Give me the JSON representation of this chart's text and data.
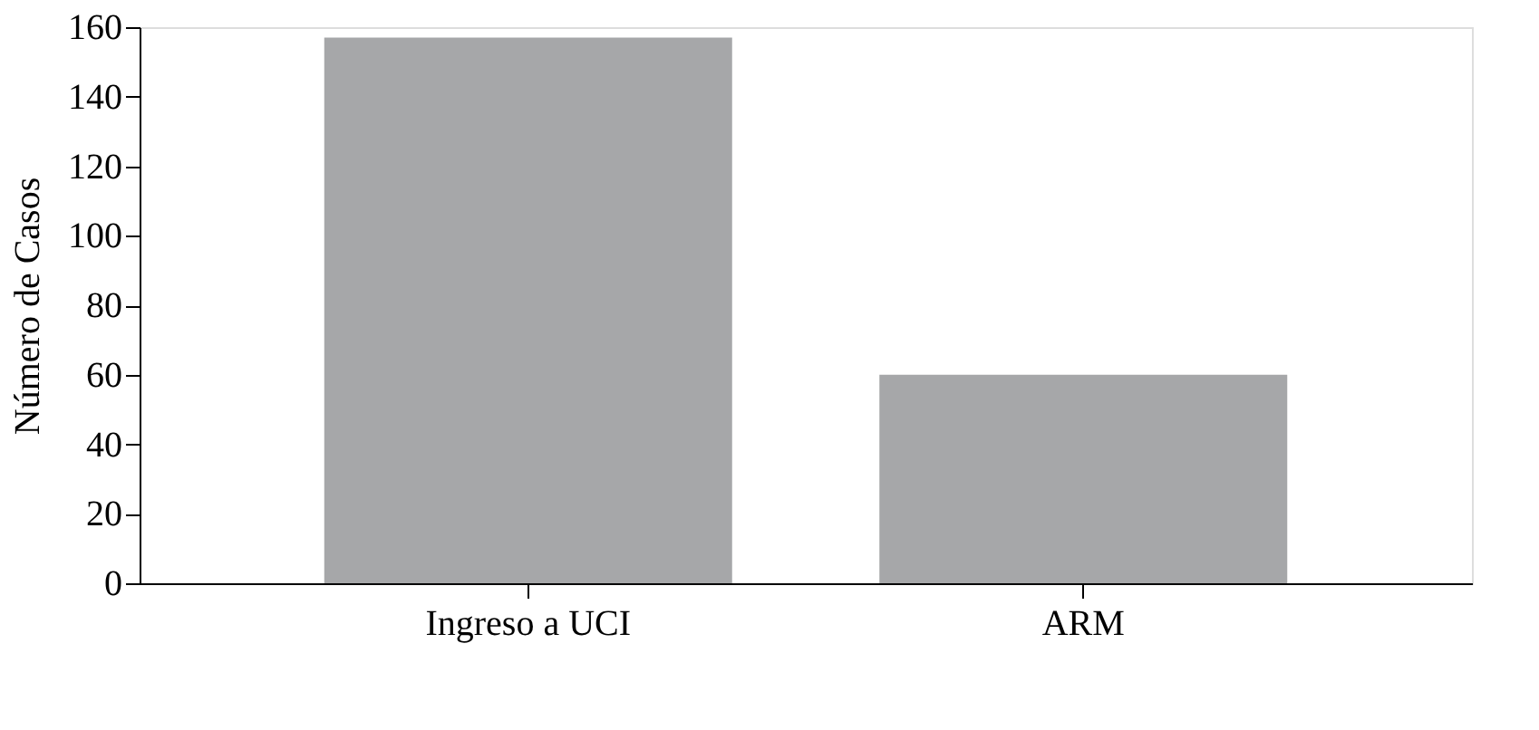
{
  "chart_data": {
    "type": "bar",
    "ylabel": "Número de Casos",
    "categories": [
      "Ingreso a UCI",
      "ARM"
    ],
    "values": [
      157,
      60
    ],
    "color": "#a6a7a9",
    "ylim": [
      0,
      160
    ],
    "yticks": [
      0,
      20,
      40,
      60,
      80,
      100,
      120,
      140,
      160
    ],
    "grid": false
  }
}
